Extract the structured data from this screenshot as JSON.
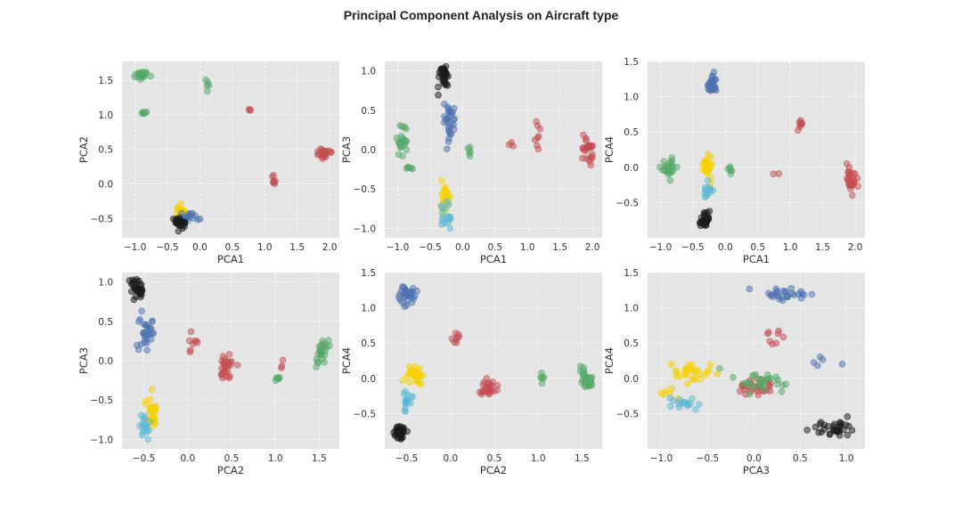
{
  "figure": {
    "title": "Principal Component Analysis on Aircraft type"
  },
  "colors": {
    "panel_bg": "#e5e5e5",
    "grid": "#ffffff",
    "groups": [
      "#c44e52",
      "#55a868",
      "#f5d000",
      "#5bb8d5",
      "#4c72b0",
      "#1a1a1a"
    ]
  },
  "chart_data": [
    {
      "type": "scatter",
      "xlabel": "PCA1",
      "ylabel": "PCA2",
      "xlim": [
        -1.2,
        2.15
      ],
      "ylim": [
        -0.78,
        1.77
      ],
      "xticks": [
        -1.0,
        -0.5,
        0.0,
        0.5,
        1.0,
        1.5,
        2.0
      ],
      "xtick_labels": [
        "−1.0",
        "−0.5",
        "0.0",
        "0.5",
        "1.0",
        "1.5",
        "2.0"
      ],
      "yticks": [
        -0.5,
        0.0,
        0.5,
        1.0,
        1.5
      ],
      "ytick_labels": [
        "−0.5",
        "0.0",
        "0.5",
        "1.0",
        "1.5"
      ],
      "clusters": [
        {
          "group": 1,
          "center": [
            -0.9,
            1.58
          ],
          "spread": [
            0.05,
            0.035
          ],
          "n": 22
        },
        {
          "group": 1,
          "center": [
            -0.84,
            1.03
          ],
          "spread": [
            0.02,
            0.01
          ],
          "n": 6
        },
        {
          "group": 1,
          "center": [
            0.11,
            1.44
          ],
          "spread": [
            0.015,
            0.04
          ],
          "n": 5
        },
        {
          "group": 0,
          "center": [
            0.78,
            1.07
          ],
          "spread": [
            0.04,
            0.01
          ],
          "n": 3
        },
        {
          "group": 0,
          "center": [
            1.14,
            0.04
          ],
          "spread": [
            0.025,
            0.04
          ],
          "n": 7
        },
        {
          "group": 0,
          "center": [
            1.9,
            0.44
          ],
          "spread": [
            0.05,
            0.04
          ],
          "n": 25
        },
        {
          "group": 2,
          "center": [
            -0.28,
            -0.4
          ],
          "spread": [
            0.05,
            0.05
          ],
          "n": 28
        },
        {
          "group": 3,
          "center": [
            -0.26,
            -0.5
          ],
          "spread": [
            0.05,
            0.03
          ],
          "n": 12
        },
        {
          "group": 4,
          "center": [
            -0.16,
            -0.48
          ],
          "spread": [
            0.06,
            0.03
          ],
          "n": 18
        },
        {
          "group": 5,
          "center": [
            -0.3,
            -0.56
          ],
          "spread": [
            0.05,
            0.04
          ],
          "n": 35
        }
      ]
    },
    {
      "type": "scatter",
      "xlabel": "PCA1",
      "ylabel": "PCA3",
      "xlim": [
        -1.2,
        2.15
      ],
      "ylim": [
        -1.12,
        1.12
      ],
      "xticks": [
        -1.0,
        -0.5,
        0.0,
        0.5,
        1.0,
        1.5,
        2.0
      ],
      "xtick_labels": [
        "−1.0",
        "−0.5",
        "0.0",
        "0.5",
        "1.0",
        "1.5",
        "2.0"
      ],
      "yticks": [
        -1.0,
        -0.5,
        0.0,
        0.5,
        1.0
      ],
      "ytick_labels": [
        "−1.0",
        "−0.5",
        "0.0",
        "0.5",
        "1.0"
      ],
      "clusters": [
        {
          "group": 5,
          "center": [
            -0.3,
            0.92
          ],
          "spread": [
            0.04,
            0.08
          ],
          "n": 32
        },
        {
          "group": 4,
          "center": [
            -0.2,
            0.38
          ],
          "spread": [
            0.05,
            0.12
          ],
          "n": 30
        },
        {
          "group": 1,
          "center": [
            -0.92,
            0.1
          ],
          "spread": [
            0.04,
            0.1
          ],
          "n": 22
        },
        {
          "group": 1,
          "center": [
            -0.83,
            -0.23
          ],
          "spread": [
            0.03,
            0.01
          ],
          "n": 6
        },
        {
          "group": 1,
          "center": [
            0.1,
            -0.01
          ],
          "spread": [
            0.015,
            0.06
          ],
          "n": 5
        },
        {
          "group": 0,
          "center": [
            0.78,
            0.0
          ],
          "spread": [
            0.04,
            0.06
          ],
          "n": 3
        },
        {
          "group": 0,
          "center": [
            1.14,
            0.22
          ],
          "spread": [
            0.02,
            0.1
          ],
          "n": 8
        },
        {
          "group": 0,
          "center": [
            1.92,
            -0.03
          ],
          "spread": [
            0.05,
            0.1
          ],
          "n": 28
        },
        {
          "group": 2,
          "center": [
            -0.28,
            -0.63
          ],
          "spread": [
            0.04,
            0.1
          ],
          "n": 30
        },
        {
          "group": 3,
          "center": [
            -0.26,
            -0.85
          ],
          "spread": [
            0.04,
            0.08
          ],
          "n": 18
        }
      ]
    },
    {
      "type": "scatter",
      "xlabel": "PCA1",
      "ylabel": "PCA4",
      "xlim": [
        -1.2,
        2.15
      ],
      "ylim": [
        -1.0,
        1.5
      ],
      "xticks": [
        -1.0,
        -0.5,
        0.0,
        0.5,
        1.0,
        1.5,
        2.0
      ],
      "xtick_labels": [
        "−1.0",
        "−0.5",
        "0.0",
        "0.5",
        "1.0",
        "1.5",
        "2.0"
      ],
      "yticks": [
        -0.5,
        0.0,
        0.5,
        1.0,
        1.5
      ],
      "ytick_labels": [
        "−0.5",
        "0.0",
        "0.5",
        "1.0",
        "1.5"
      ],
      "clusters": [
        {
          "group": 4,
          "center": [
            -0.2,
            1.15
          ],
          "spread": [
            0.04,
            0.08
          ],
          "n": 30
        },
        {
          "group": 0,
          "center": [
            1.14,
            0.6
          ],
          "spread": [
            0.02,
            0.05
          ],
          "n": 8
        },
        {
          "group": 0,
          "center": [
            1.92,
            -0.13
          ],
          "spread": [
            0.05,
            0.08
          ],
          "n": 28
        },
        {
          "group": 0,
          "center": [
            0.75,
            -0.12
          ],
          "spread": [
            0.05,
            0.03
          ],
          "n": 2
        },
        {
          "group": 1,
          "center": [
            -0.88,
            0.0
          ],
          "spread": [
            0.06,
            0.06
          ],
          "n": 30
        },
        {
          "group": 1,
          "center": [
            0.09,
            -0.08
          ],
          "spread": [
            0.015,
            0.08
          ],
          "n": 6
        },
        {
          "group": 2,
          "center": [
            -0.28,
            0.03
          ],
          "spread": [
            0.04,
            0.08
          ],
          "n": 28
        },
        {
          "group": 3,
          "center": [
            -0.27,
            -0.34
          ],
          "spread": [
            0.03,
            0.06
          ],
          "n": 14
        },
        {
          "group": 5,
          "center": [
            -0.32,
            -0.75
          ],
          "spread": [
            0.04,
            0.05
          ],
          "n": 32
        }
      ]
    },
    {
      "type": "scatter",
      "xlabel": "PCA2",
      "ylabel": "PCA3",
      "xlim": [
        -0.75,
        1.73
      ],
      "ylim": [
        -1.12,
        1.12
      ],
      "xticks": [
        -0.5,
        0.0,
        0.5,
        1.0,
        1.5
      ],
      "xtick_labels": [
        "−0.5",
        "0.0",
        "0.5",
        "1.0",
        "1.5"
      ],
      "yticks": [
        -1.0,
        -0.5,
        0.0,
        0.5,
        1.0
      ],
      "ytick_labels": [
        "−1.0",
        "−0.5",
        "0.0",
        "0.5",
        "1.0"
      ],
      "clusters": [
        {
          "group": 5,
          "center": [
            -0.58,
            0.93
          ],
          "spread": [
            0.04,
            0.07
          ],
          "n": 32
        },
        {
          "group": 4,
          "center": [
            -0.48,
            0.38
          ],
          "spread": [
            0.04,
            0.12
          ],
          "n": 30
        },
        {
          "group": 0,
          "center": [
            0.05,
            0.24
          ],
          "spread": [
            0.03,
            0.08
          ],
          "n": 8
        },
        {
          "group": 0,
          "center": [
            0.44,
            -0.05
          ],
          "spread": [
            0.04,
            0.1
          ],
          "n": 28
        },
        {
          "group": 0,
          "center": [
            1.07,
            0.0
          ],
          "spread": [
            0.01,
            0.06
          ],
          "n": 3
        },
        {
          "group": 1,
          "center": [
            1.54,
            0.12
          ],
          "spread": [
            0.05,
            0.1
          ],
          "n": 26
        },
        {
          "group": 1,
          "center": [
            1.02,
            -0.23
          ],
          "spread": [
            0.015,
            0.01
          ],
          "n": 6
        },
        {
          "group": 2,
          "center": [
            -0.41,
            -0.66
          ],
          "spread": [
            0.04,
            0.1
          ],
          "n": 30
        },
        {
          "group": 3,
          "center": [
            -0.5,
            -0.85
          ],
          "spread": [
            0.04,
            0.08
          ],
          "n": 18
        }
      ]
    },
    {
      "type": "scatter",
      "xlabel": "PCA2",
      "ylabel": "PCA4",
      "xlim": [
        -0.75,
        1.73
      ],
      "ylim": [
        -1.0,
        1.5
      ],
      "xticks": [
        -0.5,
        0.0,
        0.5,
        1.0,
        1.5
      ],
      "xtick_labels": [
        "−0.5",
        "0.0",
        "0.5",
        "1.0",
        "1.5"
      ],
      "yticks": [
        -0.5,
        0.0,
        0.5,
        1.0,
        1.5
      ],
      "ytick_labels": [
        "−0.5",
        "0.0",
        "0.5",
        "1.0",
        "1.5"
      ],
      "clusters": [
        {
          "group": 4,
          "center": [
            -0.5,
            1.17
          ],
          "spread": [
            0.04,
            0.08
          ],
          "n": 30
        },
        {
          "group": 0,
          "center": [
            0.05,
            0.58
          ],
          "spread": [
            0.03,
            0.06
          ],
          "n": 8
        },
        {
          "group": 0,
          "center": [
            0.44,
            -0.14
          ],
          "spread": [
            0.04,
            0.07
          ],
          "n": 28
        },
        {
          "group": 1,
          "center": [
            1.04,
            0.0
          ],
          "spread": [
            0.015,
            0.06
          ],
          "n": 6
        },
        {
          "group": 1,
          "center": [
            1.55,
            -0.03
          ],
          "spread": [
            0.05,
            0.08
          ],
          "n": 28
        },
        {
          "group": 2,
          "center": [
            -0.41,
            0.05
          ],
          "spread": [
            0.05,
            0.07
          ],
          "n": 30
        },
        {
          "group": 3,
          "center": [
            -0.5,
            -0.32
          ],
          "spread": [
            0.03,
            0.08
          ],
          "n": 16
        },
        {
          "group": 5,
          "center": [
            -0.58,
            -0.76
          ],
          "spread": [
            0.03,
            0.06
          ],
          "n": 32
        }
      ]
    },
    {
      "type": "scatter",
      "xlabel": "PCA3",
      "ylabel": "PCA4",
      "xlim": [
        -1.15,
        1.2
      ],
      "ylim": [
        -1.0,
        1.5
      ],
      "xticks": [
        -1.0,
        -0.5,
        0.0,
        0.5,
        1.0
      ],
      "xtick_labels": [
        "−1.0",
        "−0.5",
        "0.0",
        "0.5",
        "1.0"
      ],
      "yticks": [
        -0.5,
        0.0,
        0.5,
        1.0,
        1.5
      ],
      "ytick_labels": [
        "−0.5",
        "0.0",
        "0.5",
        "1.0",
        "1.5"
      ],
      "clusters": [
        {
          "group": 4,
          "center": [
            0.35,
            1.18
          ],
          "spread": [
            0.14,
            0.06
          ],
          "n": 28
        },
        {
          "group": 4,
          "center": [
            0.78,
            0.2
          ],
          "spread": [
            0.12,
            0.05
          ],
          "n": 5
        },
        {
          "group": 0,
          "center": [
            0.22,
            0.6
          ],
          "spread": [
            0.08,
            0.08
          ],
          "n": 8
        },
        {
          "group": 0,
          "center": [
            0.0,
            -0.12
          ],
          "spread": [
            0.1,
            0.06
          ],
          "n": 28
        },
        {
          "group": 1,
          "center": [
            0.05,
            -0.02
          ],
          "spread": [
            0.15,
            0.07
          ],
          "n": 32
        },
        {
          "group": 2,
          "center": [
            -0.65,
            0.08
          ],
          "spread": [
            0.15,
            0.06
          ],
          "n": 30
        },
        {
          "group": 2,
          "center": [
            -0.85,
            -0.22
          ],
          "spread": [
            0.07,
            0.04
          ],
          "n": 6
        },
        {
          "group": 3,
          "center": [
            -0.75,
            -0.36
          ],
          "spread": [
            0.09,
            0.04
          ],
          "n": 16
        },
        {
          "group": 5,
          "center": [
            0.9,
            -0.73
          ],
          "spread": [
            0.12,
            0.06
          ],
          "n": 32
        }
      ]
    }
  ]
}
